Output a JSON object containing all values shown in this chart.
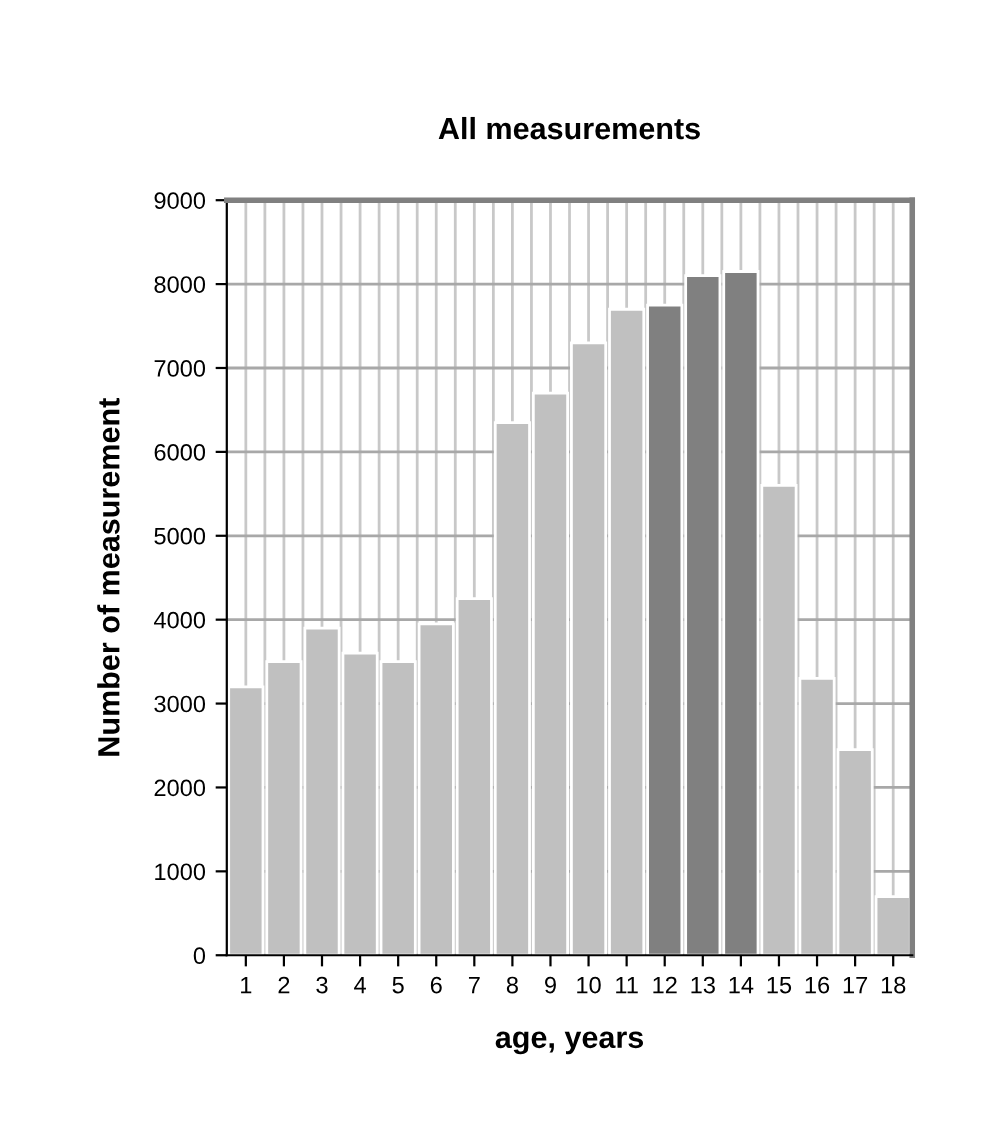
{
  "chart_data": {
    "type": "bar",
    "title": "All measurements",
    "xlabel": "age, years",
    "ylabel": "Number of measurement",
    "categories": [
      "1",
      "2",
      "3",
      "4",
      "5",
      "6",
      "7",
      "8",
      "9",
      "10",
      "11",
      "12",
      "13",
      "14",
      "15",
      "16",
      "17",
      "18"
    ],
    "values": [
      3200,
      3500,
      3900,
      3600,
      3500,
      3950,
      4250,
      6350,
      6700,
      7300,
      7700,
      7750,
      8100,
      8150,
      5600,
      3300,
      2450,
      700
    ],
    "colors": [
      "#c0c0c0",
      "#c0c0c0",
      "#c0c0c0",
      "#c0c0c0",
      "#c0c0c0",
      "#c0c0c0",
      "#c0c0c0",
      "#c0c0c0",
      "#c0c0c0",
      "#c0c0c0",
      "#c0c0c0",
      "#808080",
      "#808080",
      "#808080",
      "#c0c0c0",
      "#c0c0c0",
      "#c0c0c0",
      "#c0c0c0"
    ],
    "ylim": [
      0,
      9000
    ],
    "yticks": [
      0,
      1000,
      2000,
      3000,
      4000,
      5000,
      6000,
      7000,
      8000,
      9000
    ],
    "grid": true,
    "legend": false
  }
}
